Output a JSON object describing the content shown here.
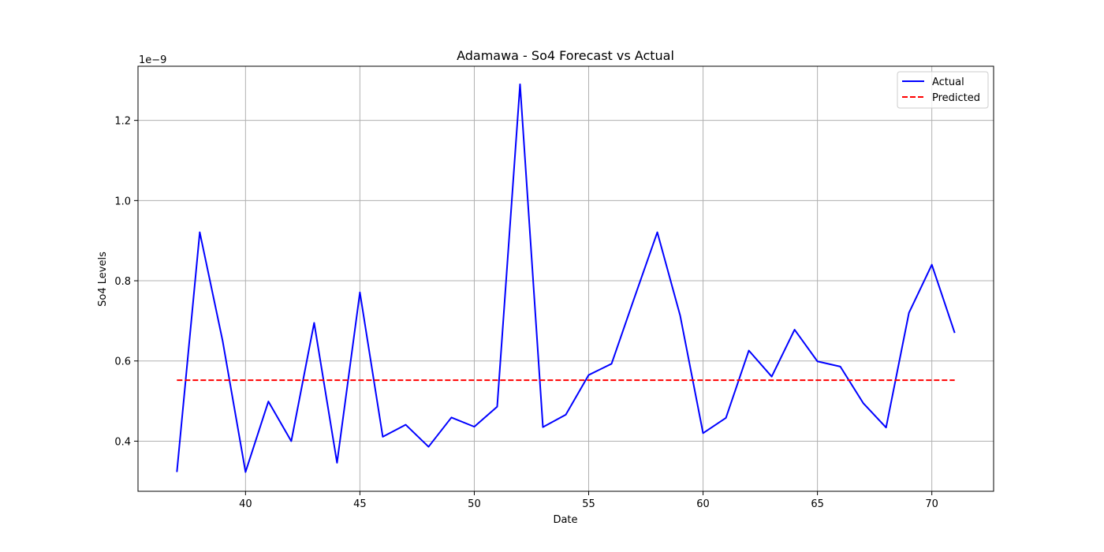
{
  "chart_data": {
    "type": "line",
    "title": "Adamawa - So4 Forecast vs Actual",
    "xlabel": "Date",
    "ylabel": "So4 Levels",
    "y_scale_label": "1e−9",
    "y_multiplier": 1e-09,
    "xlim": [
      35.3,
      72.7
    ],
    "ylim": [
      0.275,
      1.335
    ],
    "x_ticks": [
      40,
      45,
      50,
      55,
      60,
      65,
      70
    ],
    "y_ticks": [
      0.4,
      0.6,
      0.8,
      1.0,
      1.2
    ],
    "x_tick_labels": [
      "40",
      "45",
      "50",
      "55",
      "60",
      "65",
      "70"
    ],
    "y_tick_labels": [
      "0.4",
      "0.6",
      "0.8",
      "1.0",
      "1.2"
    ],
    "grid": true,
    "legend_position": "top-right",
    "x": [
      37,
      38,
      39,
      40,
      41,
      42,
      43,
      44,
      45,
      46,
      47,
      48,
      49,
      50,
      51,
      52,
      53,
      54,
      55,
      56,
      57,
      58,
      59,
      60,
      61,
      62,
      63,
      64,
      65,
      66,
      67,
      68,
      69,
      70,
      71
    ],
    "series": [
      {
        "name": "Actual",
        "color": "#0000ff",
        "style": "solid",
        "values": [
          0.323,
          0.921,
          0.65,
          0.323,
          0.499,
          0.4,
          0.695,
          0.346,
          0.771,
          0.411,
          0.441,
          0.386,
          0.459,
          0.436,
          0.486,
          1.29,
          0.435,
          0.466,
          0.565,
          0.593,
          0.758,
          0.921,
          0.713,
          0.42,
          0.458,
          0.626,
          0.561,
          0.678,
          0.599,
          0.586,
          0.495,
          0.434,
          0.72,
          0.84,
          0.67
        ]
      },
      {
        "name": "Predicted",
        "color": "#ff0000",
        "style": "dashed",
        "values": [
          0.552,
          0.552,
          0.552,
          0.552,
          0.552,
          0.552,
          0.552,
          0.552,
          0.552,
          0.552,
          0.552,
          0.552,
          0.552,
          0.552,
          0.552,
          0.552,
          0.552,
          0.552,
          0.552,
          0.552,
          0.552,
          0.552,
          0.552,
          0.552,
          0.552,
          0.552,
          0.552,
          0.552,
          0.552,
          0.552,
          0.552,
          0.552,
          0.552,
          0.552,
          0.552
        ]
      }
    ]
  }
}
